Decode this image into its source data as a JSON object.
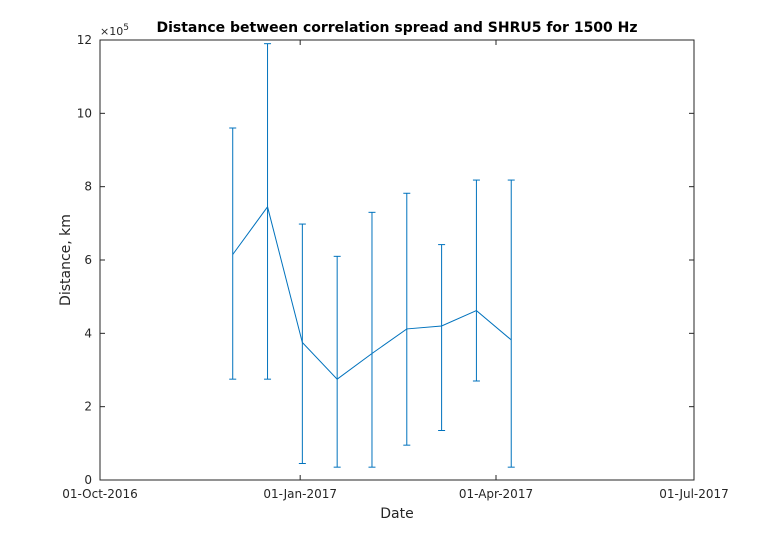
{
  "chart_data": {
    "type": "line",
    "title": "Distance between correlation spread and SHRU5 for 1500 Hz",
    "xlabel": "Date",
    "ylabel": "Distance, km",
    "y_exponent_base": "×10",
    "y_exponent_power": "5",
    "x_ticks": [
      "01-Oct-2016",
      "01-Jan-2017",
      "01-Apr-2017",
      "01-Jul-2017"
    ],
    "x_tick_dates": [
      "2016-10-01",
      "2017-01-01",
      "2017-04-01",
      "2017-07-01"
    ],
    "xlim": [
      "2016-10-01",
      "2017-07-01"
    ],
    "y_ticks": [
      0,
      2,
      4,
      6,
      8,
      10,
      12
    ],
    "ylim": [
      0,
      12
    ],
    "y_unit_multiplier": 100000,
    "grid": false,
    "series_color": "#0072BD",
    "series": [
      {
        "x": [
          "2016-12-01",
          "2016-12-17",
          "2017-01-02",
          "2017-01-18",
          "2017-02-03",
          "2017-02-19",
          "2017-03-07",
          "2017-03-23",
          "2017-04-08"
        ],
        "y": [
          6.15,
          7.45,
          3.75,
          2.75,
          3.45,
          4.12,
          4.2,
          4.62,
          3.82
        ],
        "err_lower": [
          2.75,
          2.75,
          0.45,
          0.35,
          0.35,
          0.95,
          1.35,
          2.7,
          0.35
        ],
        "err_upper": [
          9.6,
          11.9,
          6.98,
          6.1,
          7.3,
          7.82,
          6.42,
          8.18,
          8.18
        ]
      }
    ]
  }
}
